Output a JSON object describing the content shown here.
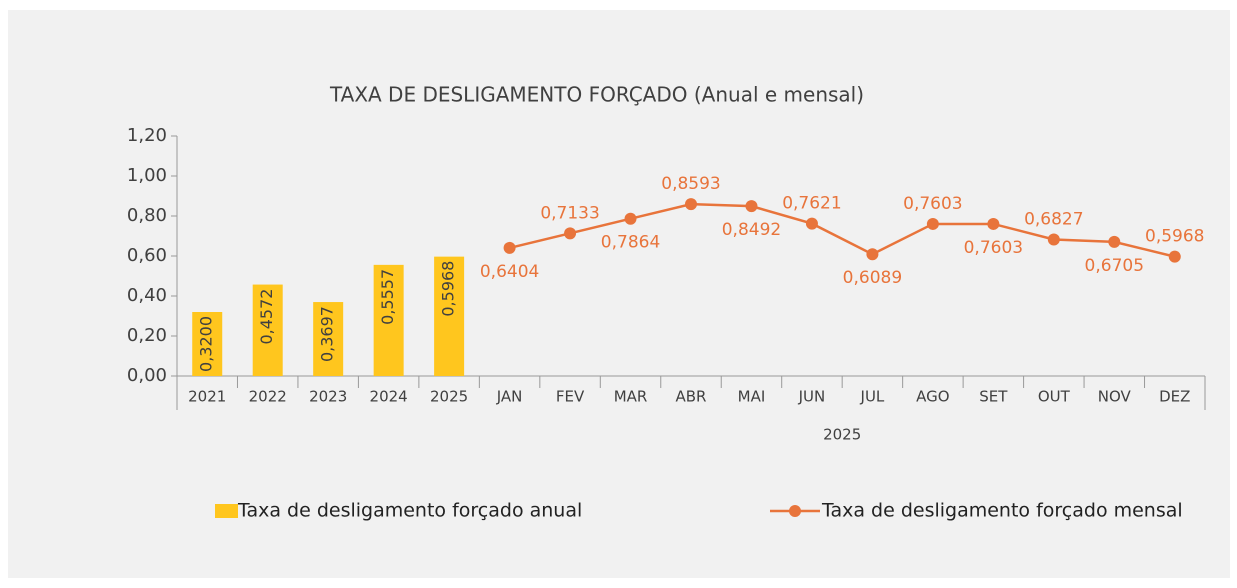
{
  "chart_data": {
    "type": "bar-line",
    "title": "TAXA DE DESLIGAMENTO FORÇADO (Anual e mensal)",
    "categories": [
      "2021",
      "2022",
      "2023",
      "2024",
      "2025",
      "JAN",
      "FEV",
      "MAR",
      "ABR",
      "MAI",
      "JUN",
      "JUL",
      "AGO",
      "SET",
      "OUT",
      "NOV",
      "DEZ"
    ],
    "category_group": {
      "label": "2025",
      "from": 5,
      "to": 16
    },
    "series": [
      {
        "name": "Taxa de desligamento forçado anual",
        "type": "bar",
        "color": "#ffc61e",
        "values": [
          0.32,
          0.4572,
          0.3697,
          0.5557,
          0.5968,
          null,
          null,
          null,
          null,
          null,
          null,
          null,
          null,
          null,
          null,
          null,
          null
        ],
        "value_labels": [
          "0,3200",
          "0,4572",
          "0,3697",
          "0,5557",
          "0,5968",
          null,
          null,
          null,
          null,
          null,
          null,
          null,
          null,
          null,
          null,
          null,
          null
        ]
      },
      {
        "name": "Taxa de desligamento forçado mensal",
        "type": "line",
        "color": "#e8743b",
        "values": [
          null,
          null,
          null,
          null,
          null,
          0.6404,
          0.7133,
          0.7864,
          0.8593,
          0.8492,
          0.7621,
          0.6089,
          0.7603,
          0.7603,
          0.6827,
          0.6705,
          0.5968
        ],
        "value_labels": [
          null,
          null,
          null,
          null,
          null,
          "0,6404",
          "0,7133",
          "0,7864",
          "0,8593",
          "0,8492",
          "0,7621",
          "0,6089",
          "0,7603",
          "0,7603",
          "0,6827",
          "0,6705",
          "0,5968"
        ]
      }
    ],
    "ylim": [
      0,
      1.2
    ],
    "yticks": [
      {
        "value": 0,
        "label": "0,00"
      },
      {
        "value": 0.2,
        "label": "0,20"
      },
      {
        "value": 0.4,
        "label": "0,40"
      },
      {
        "value": 0.6,
        "label": "0,60"
      },
      {
        "value": 0.8,
        "label": "0,80"
      },
      {
        "value": 1,
        "label": "1,00"
      },
      {
        "value": 1.2,
        "label": "1,20"
      }
    ],
    "grid": false,
    "legend": "bottom"
  }
}
